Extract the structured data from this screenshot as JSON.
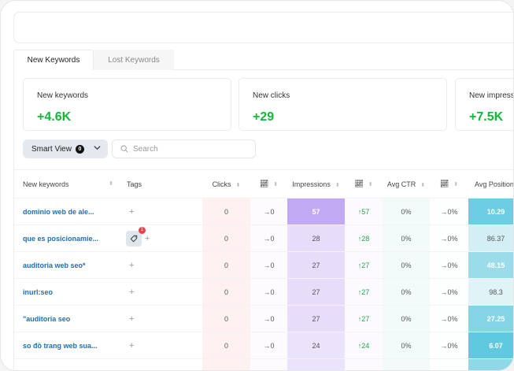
{
  "tabs": [
    {
      "label": "New Keywords",
      "active": true
    },
    {
      "label": "Lost Keywords",
      "active": false
    }
  ],
  "stats": [
    {
      "label": "New keywords",
      "value": "+4.6K"
    },
    {
      "label": "New clicks",
      "value": "+29"
    },
    {
      "label": "New impress",
      "value": "+7.5K"
    }
  ],
  "toolbar": {
    "smart_view_label": "Smart View",
    "smart_view_count": "0",
    "search_placeholder": "Search"
  },
  "table": {
    "headers": {
      "keyword": "New keywords",
      "tags": "Tags",
      "clicks": "Clicks",
      "impressions": "Impressions",
      "ctr": "Avg CTR",
      "position": "Avg Position"
    },
    "rows": [
      {
        "keyword": "dominio web de ale...",
        "tag_count": null,
        "clicks": "0",
        "clicks_trend": "→0",
        "impressions": "57",
        "impressions_trend": "↑57",
        "ctr": "0%",
        "ctr_trend": "→0%",
        "position": "10.29",
        "pos_color": "#6ccde3",
        "pos_white": true,
        "imp_color": "#c2a9f3",
        "imp_white": true
      },
      {
        "keyword": "que es posicionamie...",
        "tag_count": "1",
        "clicks": "0",
        "clicks_trend": "→0",
        "impressions": "28",
        "impressions_trend": "↑28",
        "ctr": "0%",
        "ctr_trend": "→0%",
        "position": "86.37",
        "pos_color": "#d3eef4",
        "pos_white": false,
        "imp_color": "#e7dcfa",
        "imp_white": false
      },
      {
        "keyword": "auditoria web seo*",
        "tag_count": null,
        "clicks": "0",
        "clicks_trend": "→0",
        "impressions": "27",
        "impressions_trend": "↑27",
        "ctr": "0%",
        "ctr_trend": "→0%",
        "position": "48.15",
        "pos_color": "#9bdcea",
        "pos_white": true,
        "imp_color": "#e7dcfa",
        "imp_white": false
      },
      {
        "keyword": "inurl:seo",
        "tag_count": null,
        "clicks": "0",
        "clicks_trend": "→0",
        "impressions": "27",
        "impressions_trend": "↑27",
        "ctr": "0%",
        "ctr_trend": "→0%",
        "position": "98.3",
        "pos_color": "#e0f3f7",
        "pos_white": false,
        "imp_color": "#e7dcfa",
        "imp_white": false
      },
      {
        "keyword": "\"auditoria seo",
        "tag_count": null,
        "clicks": "0",
        "clicks_trend": "→0",
        "impressions": "27",
        "impressions_trend": "↑27",
        "ctr": "0%",
        "ctr_trend": "→0%",
        "position": "27.25",
        "pos_color": "#84d4e6",
        "pos_white": true,
        "imp_color": "#e7dcfa",
        "imp_white": false
      },
      {
        "keyword": "so đồ trang web sua...",
        "tag_count": null,
        "clicks": "0",
        "clicks_trend": "→0",
        "impressions": "24",
        "impressions_trend": "↑24",
        "ctr": "0%",
        "ctr_trend": "→0%",
        "position": "6.07",
        "pos_color": "#5fc9df",
        "pos_white": true,
        "imp_color": "#ebe2fb",
        "imp_white": false
      }
    ]
  },
  "colors": {
    "accent_green": "#10b936",
    "link_blue": "#1a6fc0",
    "badge_red": "#ef3d4a"
  }
}
